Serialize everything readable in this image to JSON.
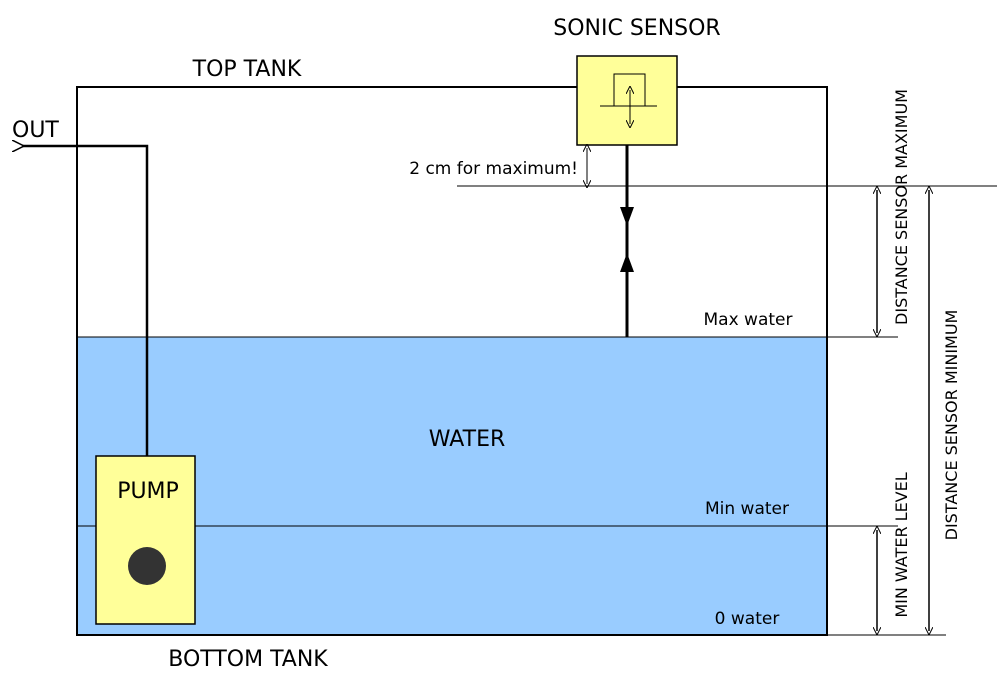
{
  "labels": {
    "sonic_sensor": "SONIC SENSOR",
    "top_tank": "TOP TANK",
    "out": "OUT",
    "bottom_tank": "BOTTOM TANK",
    "water": "WATER",
    "pump": "PUMP",
    "max_water": "Max water",
    "min_water": "Min water",
    "zero_water": "0 water",
    "two_cm_note": "2 cm for maximum!",
    "distance_sensor_maximum": "DISTANCE SENSOR MAXIMUM",
    "distance_sensor_minimum": "DISTANCE SENSOR MINIMUM",
    "min_water_level": "MIN WATER LEVEL"
  },
  "colors": {
    "water": "#99ccff",
    "sensor": "#ffff99",
    "pump": "#ffff99",
    "pump_motor": "#333333",
    "line": "#000000"
  }
}
